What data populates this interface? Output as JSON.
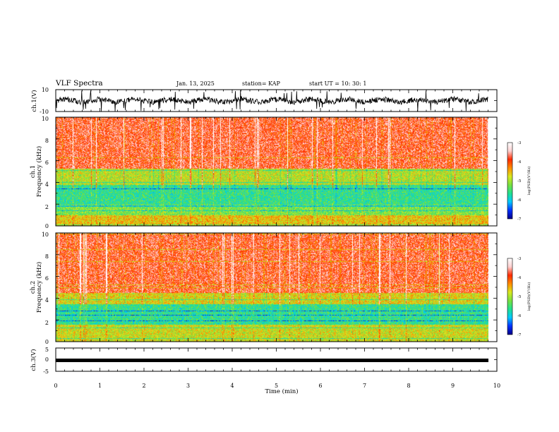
{
  "header": {
    "title": "VLF Spectra",
    "date": "Jan. 13, 2025",
    "station": "station= KAP",
    "start": "start  UT =   10: 30: 1"
  },
  "colors": {
    "colormap": [
      "#000088",
      "#0030ff",
      "#00c8ff",
      "#20e090",
      "#78e040",
      "#d8e820",
      "#ff8c00",
      "#ff2a00",
      "#ffd0d0",
      "#ffffff"
    ],
    "trace": "#000000"
  },
  "chart_data": [
    {
      "type": "line",
      "ylabel": "ch.1(V)",
      "ylim": [
        -10,
        10
      ],
      "yticks": [
        "10",
        "-10"
      ],
      "series": [
        {
          "values": "noisy waveform, approx. ±3 V about 0 with spikes to ±10 V"
        }
      ]
    },
    {
      "type": "heatmap",
      "ylabel_line1": "ch.1",
      "ylabel_line2": "Frequency  (kHz)",
      "ylim": [
        0,
        10
      ],
      "yticks": [
        "0",
        "2",
        "4",
        "6",
        "8",
        "10"
      ],
      "bands": [
        {
          "from_khz": 0.0,
          "to_khz": 1.0,
          "level": -4.6
        },
        {
          "from_khz": 1.0,
          "to_khz": 2.0,
          "level": -5.2
        },
        {
          "from_khz": 2.0,
          "to_khz": 3.8,
          "level": -5.6
        },
        {
          "from_khz": 3.8,
          "to_khz": 5.3,
          "level": -4.9
        },
        {
          "from_khz": 5.3,
          "to_khz": 10.0,
          "level": -3.8
        }
      ],
      "colorbar": {
        "label": "log(PSD)(V²/Hz)",
        "ticks": [
          "-3",
          "-4",
          "-5",
          "-6",
          "-7"
        ],
        "range": [
          -7,
          -3
        ]
      }
    },
    {
      "type": "heatmap",
      "ylabel_line1": "ch.2",
      "ylabel_line2": "Frequency  (kHz)",
      "ylim": [
        0,
        10
      ],
      "yticks": [
        "0",
        "2",
        "4",
        "6",
        "8",
        "10"
      ],
      "bands": [
        {
          "from_khz": 0.0,
          "to_khz": 1.6,
          "level": -4.8
        },
        {
          "from_khz": 1.6,
          "to_khz": 3.5,
          "level": -5.6
        },
        {
          "from_khz": 3.5,
          "to_khz": 4.5,
          "level": -4.7
        },
        {
          "from_khz": 4.5,
          "to_khz": 10.0,
          "level": -3.8
        }
      ],
      "colorbar": {
        "label": "log(PSD)(V²/Hz)",
        "ticks": [
          "-3",
          "-4",
          "-5",
          "-6",
          "-7"
        ],
        "range": [
          -7,
          -3
        ]
      }
    },
    {
      "type": "line",
      "ylabel": "ch.3(V)",
      "ylim": [
        -5,
        5
      ],
      "yticks": [
        "5",
        "0",
        "-5"
      ],
      "series": [
        {
          "values": "constant at approx. -1 V"
        }
      ]
    }
  ],
  "xaxis": {
    "label": "Time  (min)",
    "range": [
      0,
      10
    ],
    "ticks": [
      "0",
      "1",
      "2",
      "3",
      "4",
      "5",
      "6",
      "7",
      "8",
      "9",
      "10"
    ],
    "data_end_min": 9.8
  }
}
